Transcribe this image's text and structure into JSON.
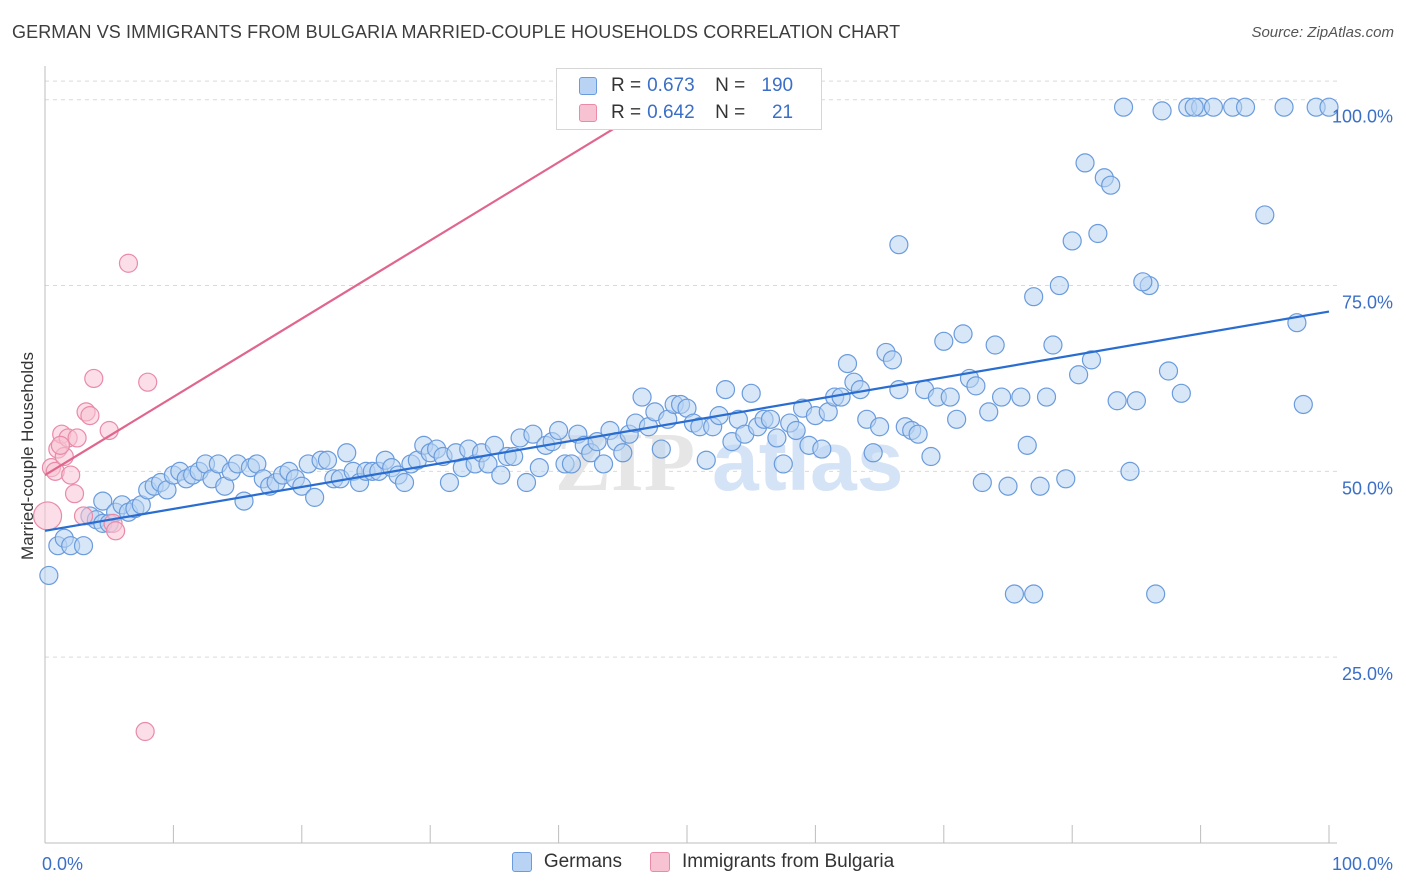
{
  "header": {
    "title": "GERMAN VS IMMIGRANTS FROM BULGARIA MARRIED-COUPLE HOUSEHOLDS CORRELATION CHART",
    "source": "Source: ZipAtlas.com"
  },
  "watermark": {
    "part1": "ZIP",
    "part2": "atlas"
  },
  "legend_top": {
    "rows": [
      {
        "r_key": "R =",
        "r_val": "0.673",
        "n_key": "N =",
        "n_val": "190"
      },
      {
        "r_key": "R =",
        "r_val": "0.642",
        "n_key": "N =",
        "n_val": "21"
      }
    ]
  },
  "legend_bottom": {
    "items": [
      {
        "label": "Germans"
      },
      {
        "label": "Immigrants from Bulgaria"
      }
    ]
  },
  "colors": {
    "blue_fill": "#b8d3f3",
    "blue_edge": "#6a9bdc",
    "blue_line": "#2a6dd0",
    "pink_fill": "#f7c3d3",
    "pink_edge": "#e98aa8",
    "pink_line": "#e0668d",
    "axis_label": "#3b6fc7",
    "grid": "#d9d9d9"
  },
  "chart_data": {
    "type": "scatter",
    "title": "GERMAN VS IMMIGRANTS FROM BULGARIA MARRIED-COUPLE HOUSEHOLDS CORRELATION CHART",
    "xlabel": "",
    "ylabel": "Married-couple Households",
    "xlim": [
      0,
      100
    ],
    "ylim": [
      0,
      104
    ],
    "x_tick_labels": [
      "0.0%",
      "100.0%"
    ],
    "y_ticks": [
      25,
      50,
      75,
      100
    ],
    "y_tick_labels": [
      "25.0%",
      "50.0%",
      "75.0%",
      "100.0%"
    ],
    "grid": "horizontal dashed",
    "legend_position": "top-center",
    "series": [
      {
        "name": "Germans",
        "color": "#6a9bdc",
        "trend": {
          "x": [
            0,
            100
          ],
          "y": [
            42.0,
            71.5
          ]
        },
        "points": [
          [
            0.3,
            36.0
          ],
          [
            1.0,
            40.0
          ],
          [
            1.5,
            41.0
          ],
          [
            2.0,
            40.0
          ],
          [
            3.0,
            40.0
          ],
          [
            3.5,
            44.0
          ],
          [
            4.0,
            43.5
          ],
          [
            4.5,
            43.0
          ],
          [
            4.5,
            46.0
          ],
          [
            5.0,
            43.0
          ],
          [
            5.5,
            44.5
          ],
          [
            6.0,
            45.5
          ],
          [
            6.5,
            44.5
          ],
          [
            7.0,
            45.0
          ],
          [
            7.5,
            45.5
          ],
          [
            8.0,
            47.5
          ],
          [
            8.5,
            48.0
          ],
          [
            9.0,
            48.5
          ],
          [
            9.5,
            47.5
          ],
          [
            10.0,
            49.5
          ],
          [
            10.5,
            50.0
          ],
          [
            11.0,
            49.0
          ],
          [
            11.5,
            49.5
          ],
          [
            12.0,
            50.0
          ],
          [
            12.5,
            51.0
          ],
          [
            13.0,
            49.0
          ],
          [
            13.5,
            51.0
          ],
          [
            14.0,
            48.0
          ],
          [
            14.5,
            50.0
          ],
          [
            15.0,
            51.0
          ],
          [
            15.5,
            46.0
          ],
          [
            16.0,
            50.5
          ],
          [
            16.5,
            51.0
          ],
          [
            17.0,
            49.0
          ],
          [
            17.5,
            48.0
          ],
          [
            18.0,
            48.5
          ],
          [
            18.5,
            49.5
          ],
          [
            19.0,
            50.0
          ],
          [
            19.5,
            49.0
          ],
          [
            20.0,
            48.0
          ],
          [
            20.5,
            51.0
          ],
          [
            21.0,
            46.5
          ],
          [
            21.5,
            51.5
          ],
          [
            22.0,
            51.5
          ],
          [
            22.5,
            49.0
          ],
          [
            23.0,
            49.0
          ],
          [
            23.5,
            52.5
          ],
          [
            24.0,
            50.0
          ],
          [
            24.5,
            48.5
          ],
          [
            25.0,
            50.0
          ],
          [
            25.5,
            50.0
          ],
          [
            26.0,
            50.0
          ],
          [
            26.5,
            51.5
          ],
          [
            27.0,
            50.5
          ],
          [
            27.5,
            49.5
          ],
          [
            28.0,
            48.5
          ],
          [
            28.5,
            51.0
          ],
          [
            29.0,
            51.5
          ],
          [
            29.5,
            53.5
          ],
          [
            30.0,
            52.5
          ],
          [
            30.5,
            53.0
          ],
          [
            31.0,
            52.0
          ],
          [
            31.5,
            48.5
          ],
          [
            32.0,
            52.5
          ],
          [
            32.5,
            50.5
          ],
          [
            33.0,
            53.0
          ],
          [
            33.5,
            51.0
          ],
          [
            34.0,
            52.5
          ],
          [
            34.5,
            51.0
          ],
          [
            35.0,
            53.5
          ],
          [
            35.5,
            49.5
          ],
          [
            36.0,
            52.0
          ],
          [
            36.5,
            52.0
          ],
          [
            37.0,
            54.5
          ],
          [
            37.5,
            48.5
          ],
          [
            38.0,
            55.0
          ],
          [
            38.5,
            50.5
          ],
          [
            39.0,
            53.5
          ],
          [
            39.5,
            54.0
          ],
          [
            40.0,
            55.5
          ],
          [
            40.5,
            51.0
          ],
          [
            41.0,
            51.0
          ],
          [
            41.5,
            55.0
          ],
          [
            42.0,
            53.5
          ],
          [
            42.5,
            52.5
          ],
          [
            43.0,
            54.0
          ],
          [
            43.5,
            51.0
          ],
          [
            44.0,
            55.5
          ],
          [
            44.5,
            54.0
          ],
          [
            45.0,
            52.5
          ],
          [
            45.5,
            55.0
          ],
          [
            46.0,
            56.5
          ],
          [
            46.5,
            60.0
          ],
          [
            47.0,
            56.0
          ],
          [
            47.5,
            58.0
          ],
          [
            48.0,
            53.0
          ],
          [
            48.5,
            57.0
          ],
          [
            49.0,
            59.0
          ],
          [
            49.5,
            59.0
          ],
          [
            50.0,
            58.5
          ],
          [
            50.5,
            56.5
          ],
          [
            51.0,
            56.0
          ],
          [
            51.5,
            51.5
          ],
          [
            52.0,
            56.0
          ],
          [
            52.5,
            57.5
          ],
          [
            53.0,
            61.0
          ],
          [
            53.5,
            54.0
          ],
          [
            54.0,
            57.0
          ],
          [
            54.5,
            55.0
          ],
          [
            55.0,
            60.5
          ],
          [
            55.5,
            56.0
          ],
          [
            56.0,
            57.0
          ],
          [
            56.5,
            57.0
          ],
          [
            57.0,
            54.5
          ],
          [
            57.5,
            51.0
          ],
          [
            58.0,
            56.5
          ],
          [
            58.5,
            55.5
          ],
          [
            59.0,
            58.5
          ],
          [
            59.5,
            53.5
          ],
          [
            60.0,
            57.5
          ],
          [
            60.5,
            53.0
          ],
          [
            61.0,
            58.0
          ],
          [
            61.5,
            60.0
          ],
          [
            62.0,
            60.0
          ],
          [
            62.5,
            64.5
          ],
          [
            63.0,
            62.0
          ],
          [
            63.5,
            61.0
          ],
          [
            64.0,
            57.0
          ],
          [
            64.5,
            52.5
          ],
          [
            65.0,
            56.0
          ],
          [
            65.5,
            66.0
          ],
          [
            66.0,
            65.0
          ],
          [
            66.5,
            61.0
          ],
          [
            67.0,
            56.0
          ],
          [
            67.5,
            55.5
          ],
          [
            68.0,
            55.0
          ],
          [
            68.5,
            61.0
          ],
          [
            69.0,
            52.0
          ],
          [
            69.5,
            60.0
          ],
          [
            70.0,
            67.5
          ],
          [
            70.5,
            60.0
          ],
          [
            71.0,
            57.0
          ],
          [
            71.5,
            68.5
          ],
          [
            72.0,
            62.5
          ],
          [
            72.5,
            61.5
          ],
          [
            73.0,
            48.5
          ],
          [
            73.5,
            58.0
          ],
          [
            74.0,
            67.0
          ],
          [
            74.5,
            60.0
          ],
          [
            75.0,
            48.0
          ],
          [
            75.5,
            33.5
          ],
          [
            76.0,
            60.0
          ],
          [
            76.5,
            53.5
          ],
          [
            77.0,
            33.5
          ],
          [
            77.5,
            48.0
          ],
          [
            78.0,
            60.0
          ],
          [
            78.5,
            67.0
          ],
          [
            79.0,
            75.0
          ],
          [
            79.5,
            49.0
          ],
          [
            80.0,
            81.0
          ],
          [
            80.5,
            63.0
          ],
          [
            81.0,
            91.5
          ],
          [
            81.5,
            65.0
          ],
          [
            82.0,
            82.0
          ],
          [
            82.5,
            89.5
          ],
          [
            83.0,
            88.5
          ],
          [
            83.5,
            59.5
          ],
          [
            84.0,
            99.0
          ],
          [
            84.5,
            50.0
          ],
          [
            85.0,
            59.5
          ],
          [
            66.5,
            80.5
          ],
          [
            77.0,
            73.5
          ],
          [
            87.5,
            63.5
          ],
          [
            88.5,
            60.5
          ],
          [
            89.0,
            99.0
          ],
          [
            90.0,
            99.0
          ],
          [
            92.5,
            99.0
          ],
          [
            93.5,
            99.0
          ],
          [
            95.0,
            84.5
          ],
          [
            96.5,
            99.0
          ],
          [
            97.5,
            70.0
          ],
          [
            98.0,
            59.0
          ],
          [
            99.0,
            99.0
          ],
          [
            100.0,
            99.0
          ],
          [
            86.5,
            33.5
          ],
          [
            89.5,
            99.0
          ],
          [
            91.0,
            99.0
          ],
          [
            86.0,
            75.0
          ],
          [
            87.0,
            98.5
          ],
          [
            85.5,
            75.5
          ]
        ]
      },
      {
        "name": "Immigrants from Bulgaria",
        "color": "#e98aa8",
        "trend": {
          "x": [
            0,
            48
          ],
          "y": [
            49.5,
            100
          ]
        },
        "points": [
          [
            0.2,
            44.0
          ],
          [
            0.5,
            50.5
          ],
          [
            0.8,
            50.0
          ],
          [
            1.0,
            53.0
          ],
          [
            1.3,
            55.0
          ],
          [
            1.5,
            52.0
          ],
          [
            1.8,
            54.5
          ],
          [
            2.0,
            49.5
          ],
          [
            2.3,
            47.0
          ],
          [
            2.5,
            54.5
          ],
          [
            3.0,
            44.0
          ],
          [
            3.2,
            58.0
          ],
          [
            3.5,
            57.5
          ],
          [
            3.8,
            62.5
          ],
          [
            5.0,
            55.5
          ],
          [
            5.3,
            43.0
          ],
          [
            5.5,
            42.0
          ],
          [
            6.5,
            78.0
          ],
          [
            8.0,
            62.0
          ],
          [
            7.8,
            15.0
          ],
          [
            1.2,
            53.5
          ]
        ]
      }
    ]
  }
}
